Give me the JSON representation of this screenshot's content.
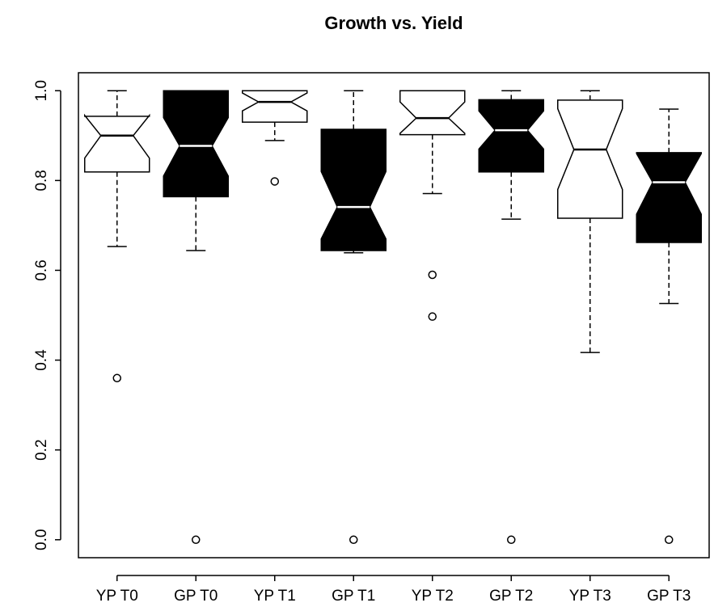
{
  "chart_data": {
    "type": "boxplot",
    "title": "Growth vs. Yield",
    "categories": [
      "YP T0",
      "GP T0",
      "YP T1",
      "GP T1",
      "YP T2",
      "GP T2",
      "YP T3",
      "GP T3"
    ],
    "boxes": [
      {
        "whisker_low": 0.653,
        "q1": 0.819,
        "notch_low": 0.85,
        "median": 0.9,
        "notch_high": 0.945,
        "q3": 0.943,
        "whisker_high": 1.0,
        "outliers": [
          0.36
        ],
        "fill": "#ffffff"
      },
      {
        "whisker_low": 0.644,
        "q1": 0.764,
        "notch_low": 0.81,
        "median": 0.877,
        "notch_high": 0.94,
        "q3": 1.0,
        "whisker_high": 1.0,
        "outliers": [
          0.0
        ],
        "fill": "#000000"
      },
      {
        "whisker_low": 0.889,
        "q1": 0.93,
        "notch_low": 0.955,
        "median": 0.975,
        "notch_high": 0.995,
        "q3": 1.0,
        "whisker_high": 1.0,
        "outliers": [
          0.798
        ],
        "fill": "#ffffff"
      },
      {
        "whisker_low": 0.639,
        "q1": 0.644,
        "notch_low": 0.67,
        "median": 0.741,
        "notch_high": 0.82,
        "q3": 0.914,
        "whisker_high": 1.0,
        "outliers": [
          0.0
        ],
        "fill": "#000000"
      },
      {
        "whisker_low": 0.771,
        "q1": 0.902,
        "notch_low": 0.905,
        "median": 0.939,
        "notch_high": 0.975,
        "q3": 1.0,
        "whisker_high": 1.0,
        "outliers": [
          0.59,
          0.497
        ],
        "fill": "#ffffff"
      },
      {
        "whisker_low": 0.714,
        "q1": 0.819,
        "notch_low": 0.87,
        "median": 0.912,
        "notch_high": 0.955,
        "q3": 0.98,
        "whisker_high": 1.0,
        "outliers": [
          0.0
        ],
        "fill": "#000000"
      },
      {
        "whisker_low": 0.417,
        "q1": 0.716,
        "notch_low": 0.78,
        "median": 0.869,
        "notch_high": 0.96,
        "q3": 0.979,
        "whisker_high": 1.0,
        "outliers": [],
        "fill": "#ffffff"
      },
      {
        "whisker_low": 0.526,
        "q1": 0.662,
        "notch_low": 0.725,
        "median": 0.796,
        "notch_high": 0.86,
        "q3": 0.862,
        "whisker_high": 0.959,
        "outliers": [
          0.0
        ],
        "fill": "#000000"
      }
    ],
    "ylim": [
      -0.04,
      1.04
    ],
    "yticks": [
      {
        "value": 0,
        "label": "0.0"
      },
      0.2,
      0.4,
      0.6,
      0.8,
      {
        "value": 1,
        "label": "1.0"
      }
    ]
  }
}
